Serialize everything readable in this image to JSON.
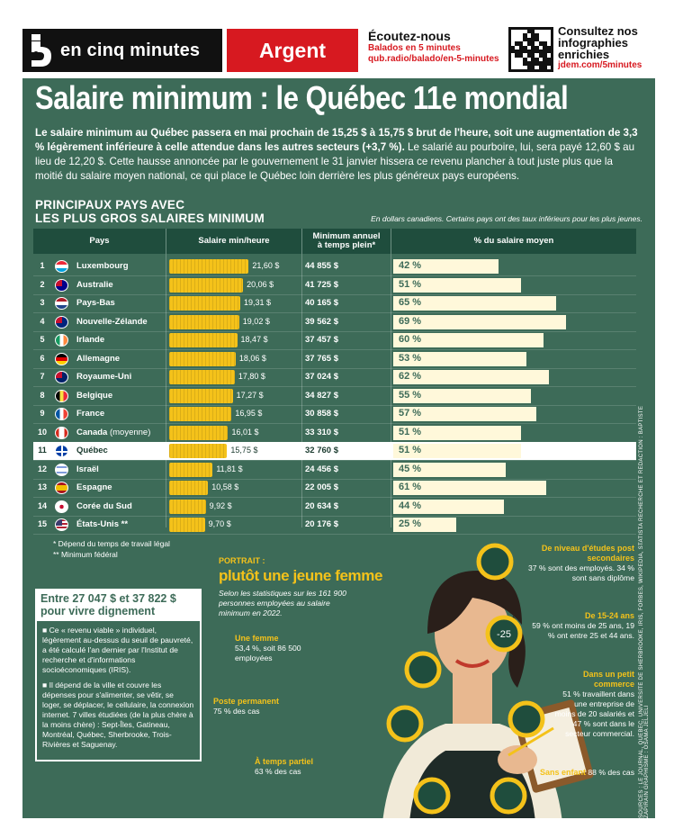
{
  "header": {
    "brand": "en cinq minutes",
    "section": "Argent",
    "podcast_title": "Écoutez-nous",
    "podcast_sub": "Balados en 5 minutes",
    "podcast_url": "qub.radio/balado/en-5-minutes",
    "consult_title": "Consultez nos infographies enrichies",
    "consult_url": "jdem.com/5minutes"
  },
  "title": "Salaire minimum : le Québec 11e mondial",
  "intro": {
    "bold": "Le salaire minimum au Québec passera en mai prochain de 15,25 $ à 15,75 $ brut de l'heure, soit une augmentation de 3,3 % légèrement inférieure à celle attendue dans les autres secteurs (+3,7 %).",
    "rest": " Le salarié au pourboire, lui, sera payé 12,60 $ au lieu de 12,20 $. Cette hausse annoncée par le gouvernement le 31 janvier hissera ce revenu plancher à tout juste plus que la moitié du salaire moyen national, ce qui place le Québec loin derrière les plus généreux pays européens."
  },
  "section_title_1": "PRINCIPAUX PAYS AVEC",
  "section_title_2": "LES PLUS GROS SALAIRES MINIMUM",
  "table_note": "En dollars canadiens. Certains pays ont des taux inférieurs pour les plus jeunes.",
  "columns": {
    "pays": "Pays",
    "salaire": "Salaire min/heure",
    "annuel_1": "Minimum annuel",
    "annuel_2": "à temps plein*",
    "pct": "% du salaire moyen"
  },
  "chart_data": {
    "type": "table",
    "rows": [
      {
        "rank": "1",
        "country": "Luxembourg",
        "wage": 21.6,
        "wage_label": "21,60 $",
        "annual": "44 855 $",
        "pct": 42,
        "pct_label": "42 %",
        "flag": "lu"
      },
      {
        "rank": "2",
        "country": "Australie",
        "wage": 20.06,
        "wage_label": "20,06 $",
        "annual": "41 725 $",
        "pct": 51,
        "pct_label": "51 %",
        "flag": "au"
      },
      {
        "rank": "3",
        "country": "Pays-Bas",
        "wage": 19.31,
        "wage_label": "19,31 $",
        "annual": "40 165 $",
        "pct": 65,
        "pct_label": "65 %",
        "flag": "nl"
      },
      {
        "rank": "4",
        "country": "Nouvelle-Zélande",
        "wage": 19.02,
        "wage_label": "19,02 $",
        "annual": "39 562 $",
        "pct": 69,
        "pct_label": "69 %",
        "flag": "nz"
      },
      {
        "rank": "5",
        "country": "Irlande",
        "wage": 18.47,
        "wage_label": "18,47 $",
        "annual": "37 457 $",
        "pct": 60,
        "pct_label": "60 %",
        "flag": "ie"
      },
      {
        "rank": "6",
        "country": "Allemagne",
        "wage": 18.06,
        "wage_label": "18,06 $",
        "annual": "37 765 $",
        "pct": 53,
        "pct_label": "53 %",
        "flag": "de"
      },
      {
        "rank": "7",
        "country": "Royaume-Uni",
        "wage": 17.8,
        "wage_label": "17,80 $",
        "annual": "37 024 $",
        "pct": 62,
        "pct_label": "62 %",
        "flag": "gb"
      },
      {
        "rank": "8",
        "country": "Belgique",
        "wage": 17.27,
        "wage_label": "17,27 $",
        "annual": "34 827 $",
        "pct": 55,
        "pct_label": "55 %",
        "flag": "be"
      },
      {
        "rank": "9",
        "country": "France",
        "wage": 16.95,
        "wage_label": "16,95 $",
        "annual": "30 858 $",
        "pct": 57,
        "pct_label": "57 %",
        "flag": "fr"
      },
      {
        "rank": "10",
        "country": "Canada",
        "qualifier": "(moyenne)",
        "wage": 16.01,
        "wage_label": "16,01 $",
        "annual": "33 310 $",
        "pct": 51,
        "pct_label": "51 %",
        "flag": "ca"
      },
      {
        "rank": "11",
        "country": "Québec",
        "wage": 15.75,
        "wage_label": "15,75 $",
        "annual": "32 760 $",
        "pct": 51,
        "pct_label": "51 %",
        "flag": "qc",
        "highlight": true
      },
      {
        "rank": "12",
        "country": "Israël",
        "wage": 11.81,
        "wage_label": "11,81 $",
        "annual": "24 456 $",
        "pct": 45,
        "pct_label": "45 %",
        "flag": "il"
      },
      {
        "rank": "13",
        "country": "Espagne",
        "wage": 10.58,
        "wage_label": "10,58 $",
        "annual": "22 005 $",
        "pct": 61,
        "pct_label": "61 %",
        "flag": "es"
      },
      {
        "rank": "14",
        "country": "Corée du Sud",
        "wage": 9.92,
        "wage_label": "9,92 $",
        "annual": "20 634 $",
        "pct": 44,
        "pct_label": "44 %",
        "flag": "kr"
      },
      {
        "rank": "15",
        "country": "États-Unis **",
        "wage": 9.7,
        "wage_label": "9,70 $",
        "annual": "20 176 $",
        "pct": 25,
        "pct_label": "25 %",
        "flag": "us"
      }
    ]
  },
  "footnote_1": "* Dépend du temps de travail légal",
  "footnote_2": "** Minimum fédéral",
  "vivre": {
    "title": "Entre 27 047 $ et 37 822 $ pour vivre dignement",
    "p1": "■ Ce « revenu viable » individuel, légèrement au-dessus du seuil de pauvreté, a été calculé l'an dernier par l'Institut de recherche et d'informations socioéconomiques (IRIS).",
    "p2": "■ Il dépend de la ville et couvre les dépenses pour s'alimenter, se vêtir, se loger, se déplacer, le cellulaire, la connexion internet. 7 villes étudiées (de la plus chère à la moins chère) : Sept-Îles, Gatineau, Montréal, Québec, Sherbrooke, Trois-Rivières et Saguenay."
  },
  "portrait": {
    "kicker": "PORTRAIT :",
    "title": "plutôt une jeune femme",
    "sub": "Selon les statistiques sur les 161 900 personnes employées au salaire minimum en 2022."
  },
  "stats": {
    "femme_k": "Une femme",
    "femme_v": "53,4 %, soit 86 500 employées",
    "poste_k": "Poste permanent",
    "poste_v": "75 % des cas",
    "partiel_k": "À temps partiel",
    "partiel_v": "63 % des cas",
    "etudes_k": "De niveau d'études post secondaires",
    "etudes_v": "37 % sont des employés. 34 % sont sans diplôme",
    "age_k": "De 15-24 ans",
    "age_v": "59 % ont moins de 25 ans, 19 % ont entre 25 et 44 ans.",
    "age_icon": "-25",
    "commerce_k": "Dans un petit commerce",
    "commerce_v": "51 % travaillent dans une entreprise de moins de 20 salariés et 47 % sont dans le secteur commercial.",
    "enfant_k": "Sans enfant",
    "enfant_v": "88 % des cas"
  },
  "sources": "SOURCES : LE JOURNAL, QUÉBEC, UNIVERSITÉ DE SHERBROOKE, IRIS, FORBES, WIKIPEDIA, STATISTA RECHERCHE ET RÉDACTION : BAPTISTE ZAPIRAIN GRAPHISME : OSAMA JELJELI",
  "colors": {
    "bg": "#3d6b58",
    "accent": "#f4c21a",
    "red": "#d71920",
    "header": "#1f4d3d"
  }
}
